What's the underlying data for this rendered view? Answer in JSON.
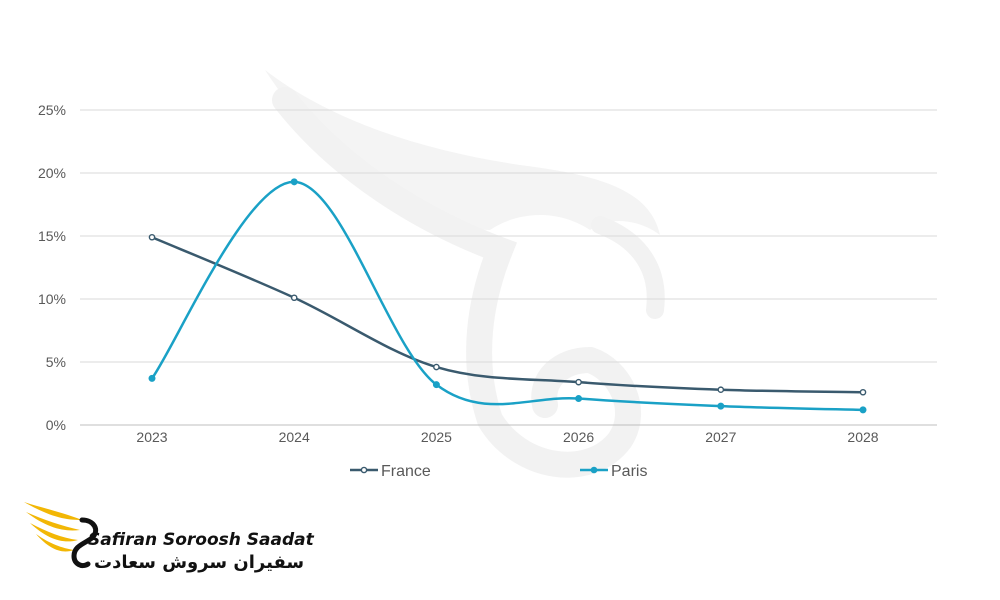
{
  "chart_data": {
    "type": "line",
    "categories": [
      "2023",
      "2024",
      "2025",
      "2026",
      "2027",
      "2028"
    ],
    "series": [
      {
        "name": "France",
        "color": "#3a5a6e",
        "values": [
          14.9,
          10.1,
          4.6,
          3.4,
          2.8,
          2.6
        ]
      },
      {
        "name": "Paris",
        "color": "#1aa1c6",
        "values": [
          3.7,
          19.3,
          3.2,
          2.1,
          1.5,
          1.2
        ]
      }
    ],
    "yticks": [
      "0%",
      "5%",
      "10%",
      "15%",
      "20%",
      "25%"
    ],
    "ylim": [
      0,
      25
    ],
    "smooth": true,
    "grid": true,
    "legend_position": "bottom"
  },
  "brand": {
    "name_en": "Safiran Soroosh Saadat",
    "name_fa": "سفیران سروش سعادت",
    "accent": "#f2b705"
  }
}
